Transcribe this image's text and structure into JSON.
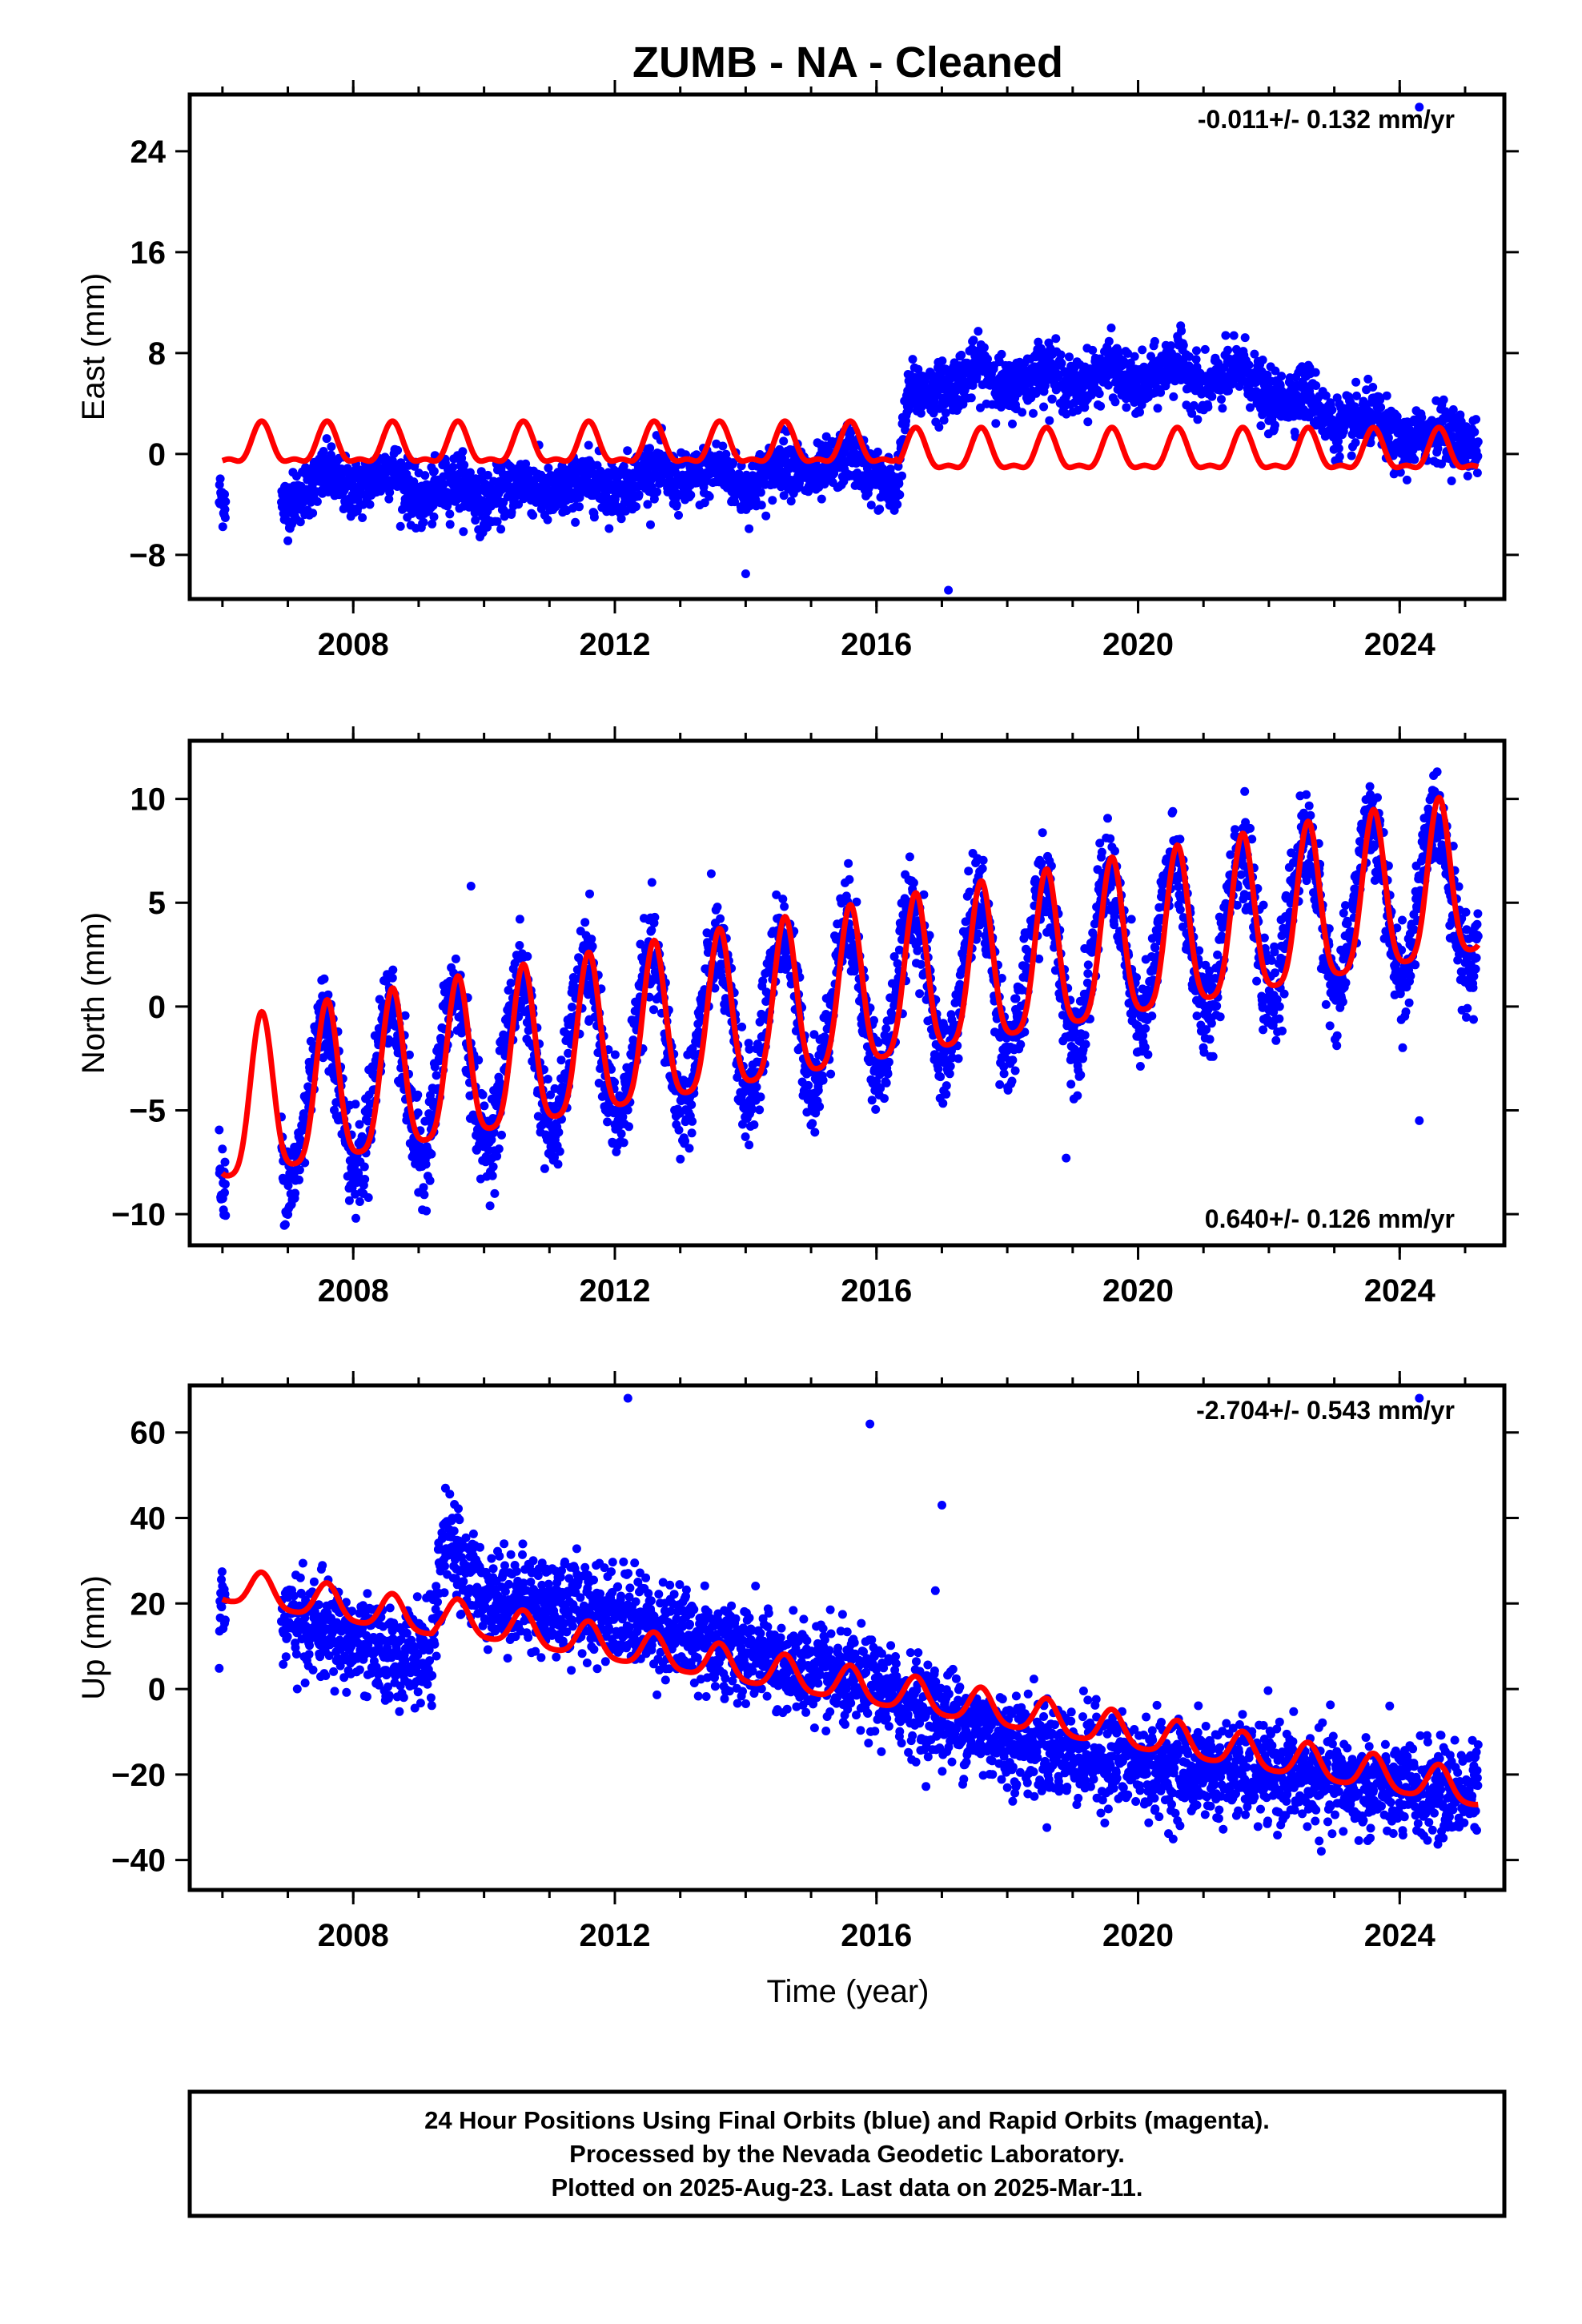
{
  "title": "ZUMB  - NA - Cleaned",
  "xlabel": "Time (year)",
  "footer": {
    "line1": "24 Hour Positions Using Final Orbits (blue) and Rapid Orbits (magenta).",
    "line2": "Processed by the Nevada Geodetic Laboratory.",
    "line3": "Plotted on 2025-Aug-23. Last data on 2025-Mar-11."
  },
  "colors": {
    "observations": "#0000ff",
    "model": "#ff0000",
    "axis": "#000000"
  },
  "chart_data": [
    {
      "type": "scatter",
      "ylabel": "East (mm)",
      "rate": "-0.011+/- 0.132 mm/yr",
      "rate_position": "top-right",
      "xlim": [
        2005.5,
        2025.6
      ],
      "ylim": [
        -11.5,
        28.5
      ],
      "xticks": [
        2008,
        2012,
        2016,
        2020,
        2024
      ],
      "yticks": [
        -8,
        0,
        8,
        16,
        24
      ],
      "observations_mean": [
        [
          2006.0,
          -3.5
        ],
        [
          2007.0,
          -4.0
        ],
        [
          2007.6,
          -1.5
        ],
        [
          2008.0,
          -3.0
        ],
        [
          2008.6,
          -1.0
        ],
        [
          2009.0,
          -4.0
        ],
        [
          2009.6,
          -2.0
        ],
        [
          2010.0,
          -4.0
        ],
        [
          2010.6,
          -2.0
        ],
        [
          2011.0,
          -3.5
        ],
        [
          2011.6,
          -2.0
        ],
        [
          2012.0,
          -3.0
        ],
        [
          2012.6,
          -1.0
        ],
        [
          2013.0,
          -2.5
        ],
        [
          2013.6,
          -1.0
        ],
        [
          2014.0,
          -3.0
        ],
        [
          2014.6,
          -0.5
        ],
        [
          2015.0,
          -2.0
        ],
        [
          2015.6,
          0.0
        ],
        [
          2016.0,
          -2.0
        ],
        [
          2016.3,
          -3.0
        ],
        [
          2016.5,
          5.0
        ],
        [
          2017.0,
          5.0
        ],
        [
          2017.6,
          7.0
        ],
        [
          2018.0,
          5.0
        ],
        [
          2018.6,
          7.0
        ],
        [
          2019.0,
          5.0
        ],
        [
          2019.6,
          7.0
        ],
        [
          2020.0,
          5.0
        ],
        [
          2020.6,
          7.5
        ],
        [
          2021.0,
          5.0
        ],
        [
          2021.6,
          7.0
        ],
        [
          2022.0,
          4.0
        ],
        [
          2022.6,
          5.0
        ],
        [
          2023.0,
          2.0
        ],
        [
          2023.6,
          3.0
        ],
        [
          2024.0,
          0.5
        ],
        [
          2024.6,
          2.0
        ],
        [
          2025.2,
          0.5
        ]
      ],
      "outliers": [
        [
          2017.1,
          -10.8
        ],
        [
          2024.3,
          27.5
        ],
        [
          2014.0,
          -9.5
        ]
      ],
      "model_offset": [
        [
          2006.0,
          0.5
        ],
        [
          2016.3,
          0.5
        ],
        [
          2016.35,
          0.0
        ],
        [
          2025.2,
          0.0
        ]
      ],
      "model_annual_amplitude": 1.5,
      "model_semiannual_amplitude": 0.6
    },
    {
      "type": "scatter",
      "ylabel": "North (mm)",
      "rate": "0.640+/- 0.126 mm/yr",
      "rate_position": "bottom-right",
      "xlim": [
        2005.5,
        2025.6
      ],
      "ylim": [
        -11.5,
        12.8
      ],
      "xticks": [
        2008,
        2012,
        2016,
        2020,
        2024
      ],
      "yticks": [
        -10,
        -5,
        0,
        5,
        10
      ],
      "observations_mean": [
        [
          2006.0,
          -7.5
        ],
        [
          2025.2,
          4.0
        ]
      ],
      "outliers": [
        [
          2024.3,
          -5.5
        ],
        [
          2009.8,
          5.8
        ],
        [
          2018.9,
          -7.3
        ]
      ],
      "model_trend": [
        [
          2006.0,
          -5.2
        ],
        [
          2025.2,
          5.8
        ]
      ],
      "model_annual_amplitude": 3.8,
      "model_semiannual_amplitude": 0.8
    },
    {
      "type": "scatter",
      "ylabel": "Up (mm)",
      "rate": "-2.704+/- 0.543 mm/yr",
      "rate_position": "top-right",
      "xlim": [
        2005.5,
        2025.6
      ],
      "ylim": [
        -47,
        71
      ],
      "xticks": [
        2008,
        2012,
        2016,
        2020,
        2024
      ],
      "yticks": [
        -40,
        -20,
        0,
        20,
        40,
        60
      ],
      "observations_mean": [
        [
          2006.0,
          20
        ],
        [
          2007.5,
          14
        ],
        [
          2008.5,
          8
        ],
        [
          2009.2,
          8
        ],
        [
          2009.4,
          35
        ],
        [
          2010.0,
          22
        ],
        [
          2012.0,
          18
        ],
        [
          2014.0,
          8
        ],
        [
          2016.0,
          0
        ],
        [
          2018.0,
          -12
        ],
        [
          2020.0,
          -18
        ],
        [
          2022.0,
          -20
        ],
        [
          2024.0,
          -24
        ],
        [
          2025.2,
          -24
        ]
      ],
      "outliers": [
        [
          2012.2,
          68
        ],
        [
          2015.9,
          62
        ],
        [
          2017.0,
          43
        ],
        [
          2024.3,
          68
        ],
        [
          2016.9,
          23
        ]
      ],
      "model_trend": [
        [
          2006.0,
          24
        ],
        [
          2009.2,
          16
        ],
        [
          2009.3,
          17
        ],
        [
          2025.2,
          -24
        ]
      ],
      "model_annual_amplitude": 4.0,
      "model_semiannual_amplitude": 0.8
    }
  ]
}
